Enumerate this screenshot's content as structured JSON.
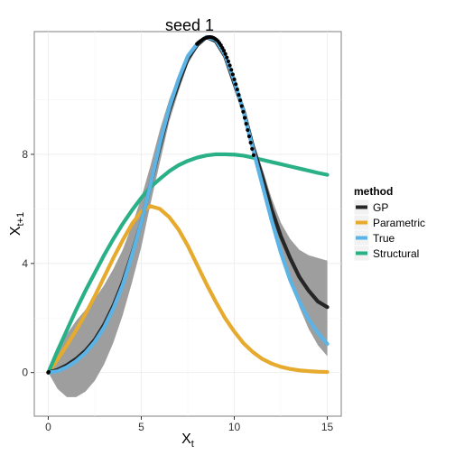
{
  "chart_data": {
    "type": "line",
    "title": "seed 1",
    "xlabel": "X",
    "xlabel_sub": "t",
    "ylabel": "X",
    "ylabel_sub": "t+1",
    "xlim": [
      -0.75,
      15.75
    ],
    "ylim": [
      -1.6,
      12.5
    ],
    "x_ticks": [
      0,
      5,
      10,
      15
    ],
    "x_tick_labels": [
      "0",
      "5",
      "10",
      "15"
    ],
    "y_ticks": [
      0,
      4,
      8
    ],
    "y_tick_labels": [
      "0",
      "4",
      "8"
    ],
    "grid": true,
    "legend": {
      "title": "method",
      "position": "right",
      "entries": [
        "GP",
        "Parametric",
        "True",
        "Structural"
      ]
    },
    "series": [
      {
        "name": "GP",
        "color": "#262626",
        "x": [
          0,
          0.5,
          1,
          1.5,
          2,
          2.5,
          3,
          3.5,
          4,
          4.5,
          5,
          5.5,
          6,
          6.5,
          7,
          7.5,
          8,
          8.5,
          9,
          9.5,
          10,
          10.5,
          11,
          11.5,
          12,
          12.5,
          13,
          13.5,
          14,
          14.5,
          15
        ],
        "y": [
          0,
          0.1,
          0.27,
          0.5,
          0.8,
          1.2,
          1.75,
          2.45,
          3.3,
          4.35,
          5.5,
          6.9,
          8.3,
          9.6,
          10.6,
          11.5,
          12.0,
          12.3,
          12.15,
          11.6,
          10.6,
          9.6,
          8.3,
          7.2,
          6.0,
          5.0,
          4.2,
          3.5,
          3.0,
          2.6,
          2.4
        ],
        "ribbon_lower": [
          0,
          -0.6,
          -0.9,
          -0.9,
          -0.7,
          -0.3,
          0.3,
          1.1,
          2.1,
          3.3,
          4.6,
          6.2,
          7.7,
          9.2,
          10.3,
          11.3,
          11.9,
          12.25,
          12.1,
          11.5,
          10.4,
          9.4,
          8.1,
          6.9,
          5.6,
          4.5,
          3.4,
          2.4,
          1.6,
          1.0,
          0.6
        ],
        "ribbon_upper": [
          0,
          0.8,
          1.4,
          1.9,
          2.3,
          2.7,
          3.2,
          3.8,
          4.5,
          5.4,
          6.4,
          7.6,
          8.9,
          10.0,
          10.9,
          11.7,
          12.1,
          12.35,
          12.2,
          11.7,
          10.8,
          9.8,
          8.5,
          7.5,
          6.4,
          5.5,
          4.9,
          4.5,
          4.3,
          4.2,
          4.1
        ]
      },
      {
        "name": "Parametric",
        "color": "#e6ab2e",
        "x": [
          0,
          0.5,
          1,
          1.5,
          2,
          2.5,
          3,
          3.5,
          4,
          4.5,
          5,
          5.5,
          6,
          6.5,
          7,
          7.5,
          8,
          8.5,
          9,
          9.5,
          10,
          10.5,
          11,
          11.5,
          12,
          12.5,
          13,
          13.5,
          14,
          14.5,
          15
        ],
        "y": [
          0,
          0.48,
          1.0,
          1.55,
          2.15,
          2.8,
          3.5,
          4.2,
          4.85,
          5.45,
          5.9,
          6.1,
          6.0,
          5.7,
          5.25,
          4.65,
          3.95,
          3.25,
          2.6,
          2.0,
          1.5,
          1.07,
          0.75,
          0.5,
          0.33,
          0.21,
          0.13,
          0.08,
          0.05,
          0.03,
          0.02
        ]
      },
      {
        "name": "True",
        "color": "#5bb4e5",
        "x": [
          0,
          0.5,
          1,
          1.5,
          2,
          2.5,
          3,
          3.5,
          4,
          4.5,
          5,
          5.5,
          6,
          6.5,
          7,
          7.5,
          8,
          8.5,
          9,
          9.5,
          10,
          10.5,
          11,
          11.5,
          12,
          12.5,
          13,
          13.5,
          14,
          14.5,
          15
        ],
        "y": [
          0,
          0.05,
          0.2,
          0.42,
          0.72,
          1.12,
          1.65,
          2.35,
          3.2,
          4.3,
          5.5,
          6.9,
          8.4,
          9.7,
          10.75,
          11.6,
          12.05,
          12.3,
          12.2,
          11.65,
          10.7,
          9.55,
          8.2,
          6.9,
          5.6,
          4.4,
          3.4,
          2.6,
          1.95,
          1.45,
          1.05
        ]
      },
      {
        "name": "Structural",
        "color": "#2ab087",
        "x": [
          0,
          0.5,
          1,
          1.5,
          2,
          2.5,
          3,
          3.5,
          4,
          4.5,
          5,
          5.5,
          6,
          6.5,
          7,
          7.5,
          8,
          8.5,
          9,
          9.5,
          10,
          10.5,
          11,
          11.5,
          12,
          12.5,
          13,
          13.5,
          14,
          14.5,
          15
        ],
        "y": [
          0,
          0.8,
          1.55,
          2.3,
          3.0,
          3.65,
          4.3,
          4.9,
          5.45,
          5.95,
          6.4,
          6.8,
          7.1,
          7.38,
          7.6,
          7.76,
          7.88,
          7.96,
          8.0,
          8.0,
          7.99,
          7.95,
          7.88,
          7.8,
          7.72,
          7.64,
          7.56,
          7.48,
          7.4,
          7.32,
          7.25
        ]
      }
    ],
    "observations": {
      "x": [
        0,
        0.02,
        8.0,
        8.08,
        8.16,
        8.24,
        8.32,
        8.4,
        8.48,
        8.56,
        8.64,
        8.72,
        8.8,
        8.88,
        8.96,
        9.04,
        9.12,
        9.2,
        9.28,
        9.36,
        9.44,
        9.52,
        9.6,
        9.68,
        9.76,
        9.84,
        9.92,
        10.0,
        10.08,
        10.16,
        10.24,
        10.32,
        10.4,
        10.48,
        10.56,
        10.64,
        10.72,
        10.8,
        10.88,
        10.96,
        11.04
      ],
      "y": [
        0,
        0.02,
        12.05,
        12.1,
        12.14,
        12.18,
        12.22,
        12.25,
        12.27,
        12.29,
        12.3,
        12.3,
        12.29,
        12.27,
        12.24,
        12.2,
        12.15,
        12.08,
        12.0,
        11.9,
        11.8,
        11.68,
        11.55,
        11.41,
        11.26,
        11.1,
        10.93,
        10.75,
        10.57,
        10.38,
        10.18,
        9.98,
        9.77,
        9.56,
        9.34,
        9.12,
        8.89,
        8.66,
        8.43,
        8.2,
        7.97
      ]
    }
  }
}
